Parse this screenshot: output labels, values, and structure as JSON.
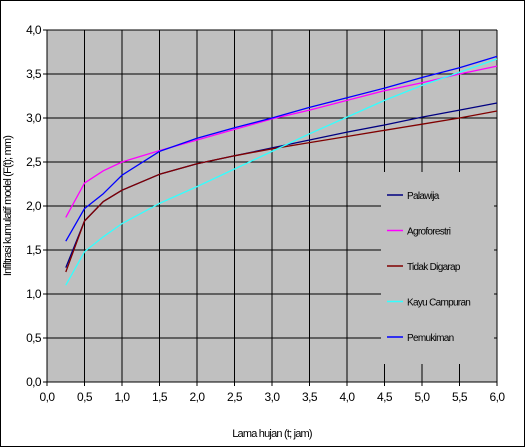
{
  "chart_data": {
    "type": "line",
    "title": "",
    "xlabel": "Lama hujan (t; jam)",
    "ylabel": "Infiltrasi kumulatif model (F(t); mm)",
    "xlim": [
      0,
      6
    ],
    "ylim": [
      0,
      4
    ],
    "x_ticks": [
      "0,0",
      "0,5",
      "1,0",
      "1,5",
      "2,0",
      "2,5",
      "3,0",
      "3,5",
      "4,0",
      "4,5",
      "5,0",
      "5,5",
      "6,0"
    ],
    "y_ticks": [
      "0,0",
      "0,5",
      "1,0",
      "1,5",
      "2,0",
      "2,5",
      "3,0",
      "3,5",
      "4,0"
    ],
    "grid": true,
    "plot_background": "#c0c0c0",
    "legend_position": "right",
    "x": [
      0.25,
      0.5,
      0.75,
      1.0,
      1.5,
      2.0,
      2.5,
      3.0,
      3.5,
      4.0,
      4.5,
      5.0,
      5.5,
      6.0
    ],
    "series": [
      {
        "name": "Palawija",
        "color": "#000080",
        "values": [
          1.3,
          1.83,
          2.05,
          2.18,
          2.36,
          2.48,
          2.57,
          2.66,
          2.75,
          2.84,
          2.92,
          3.01,
          3.09,
          3.17
        ]
      },
      {
        "name": "Agroforestri",
        "color": "#ff00ff",
        "values": [
          1.87,
          2.26,
          2.4,
          2.5,
          2.63,
          2.75,
          2.87,
          2.99,
          3.09,
          3.2,
          3.31,
          3.4,
          3.5,
          3.59
        ]
      },
      {
        "name": "Tidak Digarap",
        "color": "#800000",
        "values": [
          1.25,
          1.83,
          2.05,
          2.18,
          2.36,
          2.48,
          2.57,
          2.65,
          2.72,
          2.79,
          2.86,
          2.93,
          3.0,
          3.08
        ]
      },
      {
        "name": "Kayu Campuran",
        "color": "#33ffff",
        "values": [
          1.1,
          1.48,
          1.65,
          1.8,
          2.03,
          2.22,
          2.42,
          2.62,
          2.82,
          3.01,
          3.2,
          3.37,
          3.52,
          3.67
        ]
      },
      {
        "name": "Pemukiman",
        "color": "#0000ff",
        "values": [
          1.6,
          1.97,
          2.14,
          2.35,
          2.62,
          2.77,
          2.89,
          3.0,
          3.12,
          3.23,
          3.34,
          3.46,
          3.57,
          3.7
        ]
      }
    ]
  }
}
